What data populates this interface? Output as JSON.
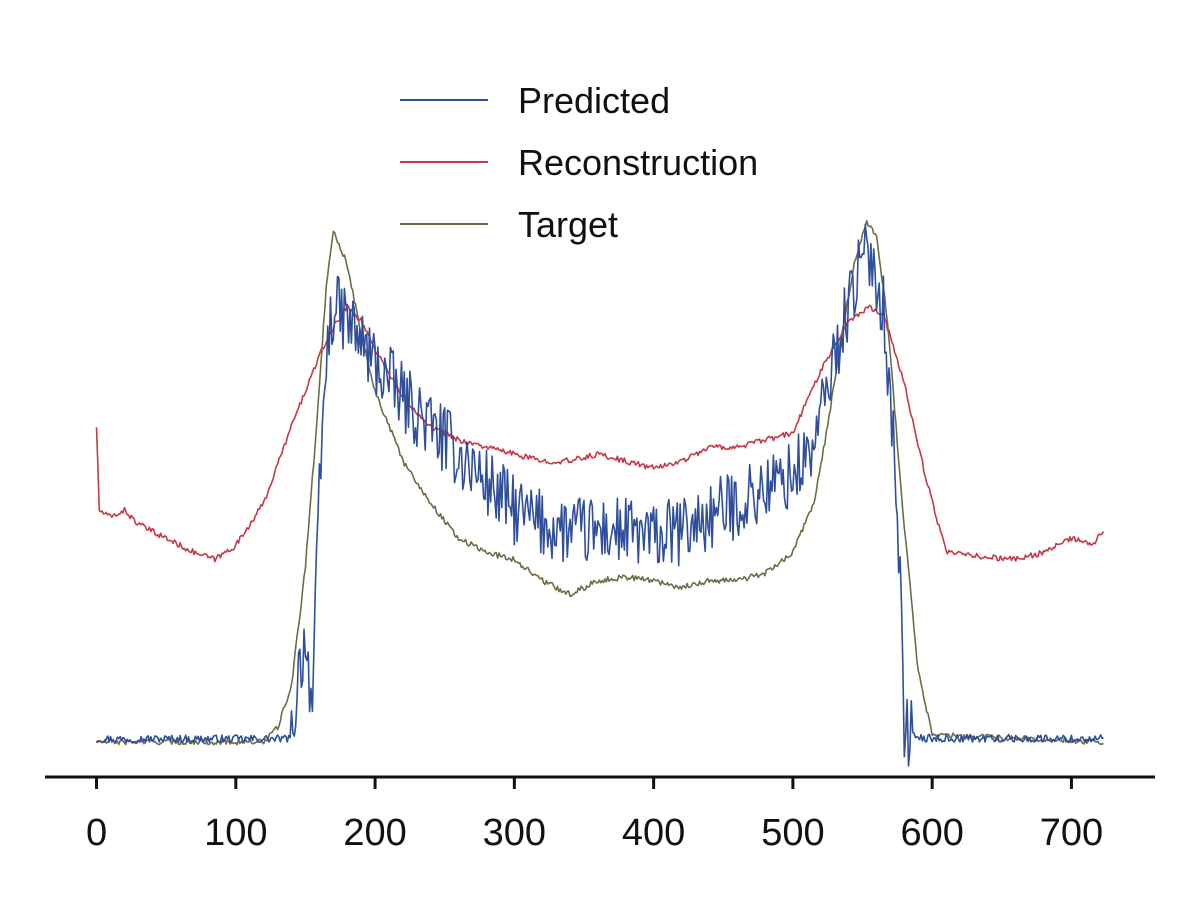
{
  "chart_data": {
    "type": "line",
    "title": "",
    "xlabel": "",
    "ylabel": "",
    "xlim": [
      -37,
      760
    ],
    "ylim": [
      -0.05,
      1.0
    ],
    "xticks": [
      0,
      100,
      200,
      300,
      400,
      500,
      600,
      700
    ],
    "x_tick_labels": [
      "0",
      "100",
      "200",
      "300",
      "400",
      "500",
      "600",
      "700"
    ],
    "y_axis_visible": false,
    "grid": false,
    "legend_position": "top-center",
    "x_range": [
      0,
      723
    ],
    "series": [
      {
        "name": "Predicted",
        "color": "#2f4e9c",
        "noise_amplitude": 0.05,
        "points": [
          [
            0,
            0.004
          ],
          [
            100,
            0.004
          ],
          [
            140,
            0.004
          ],
          [
            145,
            0.1
          ],
          [
            150,
            0.15
          ],
          [
            155,
            0.05
          ],
          [
            160,
            0.35
          ],
          [
            165,
            0.55
          ],
          [
            170,
            0.62
          ],
          [
            180,
            0.6
          ],
          [
            190,
            0.57
          ],
          [
            200,
            0.54
          ],
          [
            220,
            0.49
          ],
          [
            240,
            0.45
          ],
          [
            260,
            0.41
          ],
          [
            280,
            0.37
          ],
          [
            300,
            0.33
          ],
          [
            320,
            0.31
          ],
          [
            340,
            0.3
          ],
          [
            360,
            0.3
          ],
          [
            380,
            0.3
          ],
          [
            400,
            0.29
          ],
          [
            420,
            0.3
          ],
          [
            440,
            0.32
          ],
          [
            460,
            0.34
          ],
          [
            480,
            0.36
          ],
          [
            500,
            0.38
          ],
          [
            515,
            0.42
          ],
          [
            530,
            0.55
          ],
          [
            545,
            0.66
          ],
          [
            555,
            0.7
          ],
          [
            565,
            0.62
          ],
          [
            575,
            0.35
          ],
          [
            580,
            0.02
          ],
          [
            590,
            0.005
          ],
          [
            723,
            0.004
          ]
        ]
      },
      {
        "name": "Reconstruction",
        "color": "#c43a49",
        "noise_amplitude": 0.004,
        "points": [
          [
            0,
            0.45
          ],
          [
            2,
            0.33
          ],
          [
            10,
            0.32
          ],
          [
            20,
            0.33
          ],
          [
            30,
            0.31
          ],
          [
            50,
            0.29
          ],
          [
            70,
            0.27
          ],
          [
            85,
            0.26
          ],
          [
            100,
            0.28
          ],
          [
            120,
            0.34
          ],
          [
            140,
            0.45
          ],
          [
            160,
            0.55
          ],
          [
            170,
            0.59
          ],
          [
            180,
            0.62
          ],
          [
            190,
            0.6
          ],
          [
            200,
            0.56
          ],
          [
            220,
            0.49
          ],
          [
            240,
            0.45
          ],
          [
            260,
            0.43
          ],
          [
            280,
            0.42
          ],
          [
            300,
            0.41
          ],
          [
            320,
            0.4
          ],
          [
            340,
            0.4
          ],
          [
            360,
            0.41
          ],
          [
            380,
            0.4
          ],
          [
            400,
            0.39
          ],
          [
            420,
            0.4
          ],
          [
            440,
            0.42
          ],
          [
            460,
            0.42
          ],
          [
            480,
            0.43
          ],
          [
            500,
            0.44
          ],
          [
            520,
            0.53
          ],
          [
            540,
            0.6
          ],
          [
            555,
            0.62
          ],
          [
            565,
            0.61
          ],
          [
            580,
            0.51
          ],
          [
            595,
            0.38
          ],
          [
            610,
            0.27
          ],
          [
            630,
            0.265
          ],
          [
            660,
            0.26
          ],
          [
            680,
            0.27
          ],
          [
            700,
            0.29
          ],
          [
            715,
            0.28
          ],
          [
            723,
            0.3
          ]
        ]
      },
      {
        "name": "Target",
        "color": "#6b6e45",
        "noise_amplitude": 0.004,
        "points": [
          [
            0,
            0
          ],
          [
            120,
            0
          ],
          [
            130,
            0.02
          ],
          [
            140,
            0.08
          ],
          [
            150,
            0.25
          ],
          [
            158,
            0.45
          ],
          [
            165,
            0.65
          ],
          [
            170,
            0.73
          ],
          [
            180,
            0.68
          ],
          [
            190,
            0.58
          ],
          [
            200,
            0.5
          ],
          [
            220,
            0.4
          ],
          [
            240,
            0.34
          ],
          [
            260,
            0.29
          ],
          [
            280,
            0.27
          ],
          [
            300,
            0.26
          ],
          [
            320,
            0.23
          ],
          [
            340,
            0.21
          ],
          [
            360,
            0.23
          ],
          [
            380,
            0.235
          ],
          [
            400,
            0.23
          ],
          [
            420,
            0.22
          ],
          [
            440,
            0.23
          ],
          [
            460,
            0.23
          ],
          [
            480,
            0.24
          ],
          [
            500,
            0.27
          ],
          [
            515,
            0.34
          ],
          [
            525,
            0.45
          ],
          [
            535,
            0.58
          ],
          [
            545,
            0.69
          ],
          [
            553,
            0.74
          ],
          [
            560,
            0.72
          ],
          [
            568,
            0.6
          ],
          [
            578,
            0.35
          ],
          [
            590,
            0.1
          ],
          [
            600,
            0.01
          ],
          [
            723,
            0.0
          ]
        ]
      }
    ]
  }
}
